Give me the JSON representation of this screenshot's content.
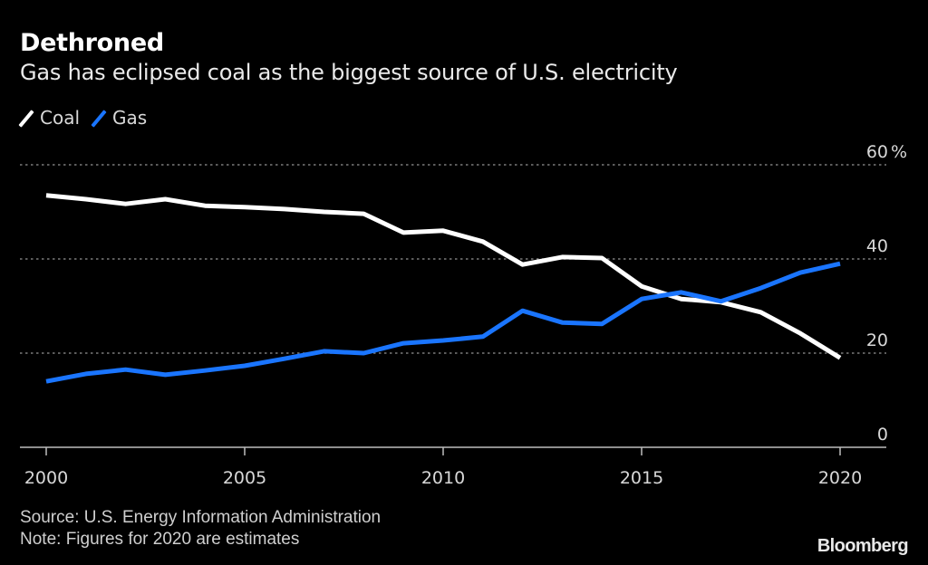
{
  "header": {
    "title": "Dethroned",
    "subtitle": "Gas has eclipsed coal as the biggest source of U.S. electricity"
  },
  "legend": [
    {
      "label": "Coal",
      "color": "#ffffff"
    },
    {
      "label": "Gas",
      "color": "#1a75ff"
    }
  ],
  "footer": {
    "source": "Source: U.S. Energy Information Administration",
    "note": "Note: Figures for 2020 are estimates",
    "brand": "Bloomberg"
  },
  "chart_data": {
    "type": "line",
    "title": "Dethroned",
    "subtitle": "Gas has eclipsed coal as the biggest source of U.S. electricity",
    "xlabel": "",
    "ylabel": "%",
    "x": [
      2000,
      2001,
      2002,
      2003,
      2004,
      2005,
      2006,
      2007,
      2008,
      2009,
      2010,
      2011,
      2012,
      2013,
      2014,
      2015,
      2016,
      2017,
      2018,
      2019,
      2020
    ],
    "series": [
      {
        "name": "Coal",
        "color": "#ffffff",
        "values": [
          53.5,
          52.7,
          51.7,
          52.7,
          51.3,
          51.0,
          50.6,
          50.0,
          49.6,
          45.6,
          46.0,
          43.7,
          38.8,
          40.4,
          40.2,
          34.2,
          31.5,
          30.8,
          28.7,
          24.2,
          19.0
        ]
      },
      {
        "name": "Gas",
        "color": "#1a75ff",
        "values": [
          14.0,
          15.6,
          16.5,
          15.4,
          16.3,
          17.3,
          18.8,
          20.4,
          20.0,
          22.1,
          22.7,
          23.5,
          29.0,
          26.5,
          26.2,
          31.5,
          32.9,
          31.0,
          33.8,
          37.1,
          39.0
        ]
      }
    ],
    "xlim": [
      2000,
      2020
    ],
    "ylim": [
      0,
      60
    ],
    "xticks": [
      2000,
      2005,
      2010,
      2015,
      2020
    ],
    "xtick_labels": [
      "2000",
      "2005",
      "2010",
      "2015",
      "2020"
    ],
    "yticks": [
      0,
      20,
      40,
      60
    ],
    "ytick_labels": [
      "0",
      "20",
      "40",
      "60 %"
    ],
    "grid": true,
    "grid_style": "dotted horizontal",
    "legend_position": "top-left",
    "y_axis_side": "right"
  }
}
